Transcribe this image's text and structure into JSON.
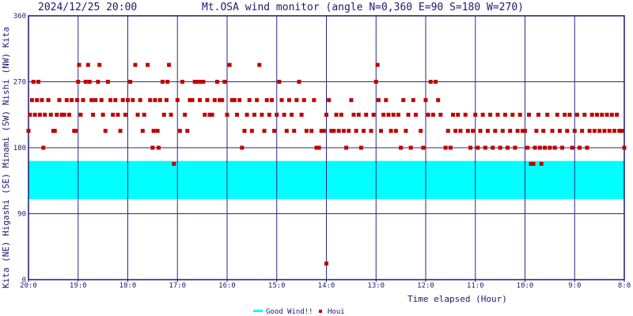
{
  "header": {
    "timestamp": "2024/12/25 20:00",
    "title": "Mt.OSA wind monitor (angle N=0,360 E=90 S=180 W=270)"
  },
  "left_labels": [
    "Kita (NE) Higashi (SE) Minami (SW) Nishi (NW) Kita"
  ],
  "colors": {
    "plot_border": "#1a1a6e",
    "grid": "#2a2a8a",
    "good_wind": "#00ffff",
    "houi": "#c00000",
    "text": "#1a1a6e"
  },
  "chart_data": {
    "type": "scatter",
    "title": "Mt.OSA wind monitor (angle N=0,360 E=90 S=180 W=270)",
    "xlabel": "Time elapsed (Hour)",
    "ylabel": "Kita (NE) Higashi (SE) Minami (SW) Nishi (NW) Kita",
    "xlim": [
      20,
      8
    ],
    "ylim": [
      0,
      360
    ],
    "x_ticks": [
      "20:0",
      "19:0",
      "18:0",
      "17:0",
      "16:0",
      "15:0",
      "14:0",
      "13:0",
      "12:0",
      "11:0",
      "10:0",
      "9:0",
      "8:0"
    ],
    "y_ticks": [
      "0",
      "90",
      "180",
      "270",
      "360"
    ],
    "grid": true,
    "legend": {
      "placement": "bottom-center",
      "entries": [
        "Good Wind!!",
        "Houi"
      ]
    },
    "good_wind_band": [
      110,
      162
    ],
    "houi_series_name": "Houi",
    "houi_points": [
      [
        20.0,
        203
      ],
      [
        19.97,
        225
      ],
      [
        19.93,
        245
      ],
      [
        19.9,
        270
      ],
      [
        19.87,
        225
      ],
      [
        19.83,
        245
      ],
      [
        19.8,
        270
      ],
      [
        19.77,
        225
      ],
      [
        19.73,
        245
      ],
      [
        19.7,
        180
      ],
      [
        19.67,
        225
      ],
      [
        19.6,
        245
      ],
      [
        19.55,
        225
      ],
      [
        19.5,
        203
      ],
      [
        19.47,
        203
      ],
      [
        19.43,
        225
      ],
      [
        19.38,
        245
      ],
      [
        19.33,
        225
      ],
      [
        19.28,
        225
      ],
      [
        19.23,
        245
      ],
      [
        19.18,
        225
      ],
      [
        19.13,
        245
      ],
      [
        19.08,
        203
      ],
      [
        19.05,
        203
      ],
      [
        19.02,
        245
      ],
      [
        19.0,
        270
      ],
      [
        18.98,
        293
      ],
      [
        18.95,
        225
      ],
      [
        18.9,
        245
      ],
      [
        18.85,
        270
      ],
      [
        18.8,
        293
      ],
      [
        18.77,
        270
      ],
      [
        18.73,
        245
      ],
      [
        18.7,
        225
      ],
      [
        18.65,
        245
      ],
      [
        18.6,
        270
      ],
      [
        18.57,
        293
      ],
      [
        18.53,
        245
      ],
      [
        18.5,
        225
      ],
      [
        18.45,
        203
      ],
      [
        18.4,
        270
      ],
      [
        18.35,
        245
      ],
      [
        18.3,
        225
      ],
      [
        18.25,
        245
      ],
      [
        18.2,
        225
      ],
      [
        18.15,
        203
      ],
      [
        18.1,
        245
      ],
      [
        18.05,
        225
      ],
      [
        18.0,
        245
      ],
      [
        17.95,
        270
      ],
      [
        17.9,
        245
      ],
      [
        17.85,
        293
      ],
      [
        17.8,
        225
      ],
      [
        17.75,
        245
      ],
      [
        17.7,
        203
      ],
      [
        17.67,
        225
      ],
      [
        17.6,
        293
      ],
      [
        17.55,
        245
      ],
      [
        17.5,
        180
      ],
      [
        17.48,
        203
      ],
      [
        17.45,
        245
      ],
      [
        17.4,
        203
      ],
      [
        17.38,
        180
      ],
      [
        17.35,
        245
      ],
      [
        17.3,
        270
      ],
      [
        17.27,
        225
      ],
      [
        17.22,
        245
      ],
      [
        17.2,
        270
      ],
      [
        17.17,
        293
      ],
      [
        17.13,
        225
      ],
      [
        17.07,
        158
      ],
      [
        17.0,
        245
      ],
      [
        16.95,
        203
      ],
      [
        16.9,
        270
      ],
      [
        16.85,
        225
      ],
      [
        16.8,
        203
      ],
      [
        16.75,
        245
      ],
      [
        16.7,
        245
      ],
      [
        16.65,
        270
      ],
      [
        16.6,
        270
      ],
      [
        16.55,
        245
      ],
      [
        16.52,
        270
      ],
      [
        16.48,
        270
      ],
      [
        16.45,
        225
      ],
      [
        16.4,
        245
      ],
      [
        16.35,
        225
      ],
      [
        16.3,
        225
      ],
      [
        16.25,
        245
      ],
      [
        16.2,
        270
      ],
      [
        16.15,
        245
      ],
      [
        16.1,
        245
      ],
      [
        16.05,
        270
      ],
      [
        16.0,
        225
      ],
      [
        15.95,
        293
      ],
      [
        15.9,
        245
      ],
      [
        15.85,
        245
      ],
      [
        15.8,
        225
      ],
      [
        15.75,
        245
      ],
      [
        15.7,
        180
      ],
      [
        15.65,
        203
      ],
      [
        15.6,
        225
      ],
      [
        15.55,
        245
      ],
      [
        15.5,
        203
      ],
      [
        15.45,
        225
      ],
      [
        15.4,
        245
      ],
      [
        15.35,
        293
      ],
      [
        15.3,
        225
      ],
      [
        15.25,
        203
      ],
      [
        15.2,
        245
      ],
      [
        15.15,
        225
      ],
      [
        15.1,
        245
      ],
      [
        15.05,
        203
      ],
      [
        15.0,
        225
      ],
      [
        14.95,
        270
      ],
      [
        14.9,
        245
      ],
      [
        14.85,
        225
      ],
      [
        14.8,
        203
      ],
      [
        14.75,
        245
      ],
      [
        14.7,
        225
      ],
      [
        14.65,
        203
      ],
      [
        14.6,
        245
      ],
      [
        14.55,
        270
      ],
      [
        14.5,
        225
      ],
      [
        14.45,
        245
      ],
      [
        14.4,
        203
      ],
      [
        14.3,
        203
      ],
      [
        14.25,
        245
      ],
      [
        14.2,
        180
      ],
      [
        14.15,
        180
      ],
      [
        14.1,
        203
      ],
      [
        14.05,
        203
      ],
      [
        14.0,
        225
      ],
      [
        13.95,
        245
      ],
      [
        13.9,
        203
      ],
      [
        13.85,
        203
      ],
      [
        13.8,
        225
      ],
      [
        13.75,
        203
      ],
      [
        13.7,
        225
      ],
      [
        13.65,
        203
      ],
      [
        13.6,
        180
      ],
      [
        13.55,
        203
      ],
      [
        13.5,
        245
      ],
      [
        13.45,
        225
      ],
      [
        13.4,
        203
      ],
      [
        13.35,
        225
      ],
      [
        13.3,
        180
      ],
      [
        13.25,
        203
      ],
      [
        13.2,
        225
      ],
      [
        13.1,
        203
      ],
      [
        13.05,
        225
      ],
      [
        13.0,
        270
      ],
      [
        12.97,
        293
      ],
      [
        12.95,
        245
      ],
      [
        12.9,
        203
      ],
      [
        12.85,
        225
      ],
      [
        12.8,
        245
      ],
      [
        12.75,
        225
      ],
      [
        12.7,
        203
      ],
      [
        12.65,
        225
      ],
      [
        12.6,
        203
      ],
      [
        12.55,
        225
      ],
      [
        12.5,
        180
      ],
      [
        12.45,
        245
      ],
      [
        12.4,
        203
      ],
      [
        12.35,
        225
      ],
      [
        12.3,
        180
      ],
      [
        12.25,
        245
      ],
      [
        12.2,
        225
      ],
      [
        12.1,
        203
      ],
      [
        12.05,
        180
      ],
      [
        12.0,
        245
      ],
      [
        11.95,
        225
      ],
      [
        11.9,
        270
      ],
      [
        11.85,
        225
      ],
      [
        11.8,
        270
      ],
      [
        11.75,
        245
      ],
      [
        11.7,
        225
      ],
      [
        11.6,
        180
      ],
      [
        11.55,
        203
      ],
      [
        11.5,
        180
      ],
      [
        11.45,
        225
      ],
      [
        11.4,
        203
      ],
      [
        11.35,
        225
      ],
      [
        11.3,
        203
      ],
      [
        11.2,
        225
      ],
      [
        11.15,
        203
      ],
      [
        11.1,
        180
      ],
      [
        11.05,
        203
      ],
      [
        11.0,
        225
      ],
      [
        10.95,
        180
      ],
      [
        10.9,
        203
      ],
      [
        10.85,
        225
      ],
      [
        10.8,
        180
      ],
      [
        10.75,
        203
      ],
      [
        10.7,
        225
      ],
      [
        10.65,
        180
      ],
      [
        10.6,
        203
      ],
      [
        10.55,
        225
      ],
      [
        10.5,
        180
      ],
      [
        10.45,
        203
      ],
      [
        10.4,
        225
      ],
      [
        10.35,
        180
      ],
      [
        10.3,
        203
      ],
      [
        10.25,
        225
      ],
      [
        10.2,
        180
      ],
      [
        10.15,
        203
      ],
      [
        10.1,
        225
      ],
      [
        10.05,
        203
      ],
      [
        10.0,
        203
      ],
      [
        9.95,
        180
      ],
      [
        9.92,
        225
      ],
      [
        9.88,
        158
      ],
      [
        9.83,
        158
      ],
      [
        9.8,
        180
      ],
      [
        9.77,
        203
      ],
      [
        9.73,
        225
      ],
      [
        9.7,
        180
      ],
      [
        9.67,
        158
      ],
      [
        9.63,
        203
      ],
      [
        9.6,
        180
      ],
      [
        9.55,
        225
      ],
      [
        9.5,
        180
      ],
      [
        9.45,
        203
      ],
      [
        9.4,
        180
      ],
      [
        9.35,
        225
      ],
      [
        9.3,
        203
      ],
      [
        9.25,
        180
      ],
      [
        9.2,
        225
      ],
      [
        9.15,
        203
      ],
      [
        9.1,
        225
      ],
      [
        9.05,
        180
      ],
      [
        9.0,
        203
      ],
      [
        8.95,
        225
      ],
      [
        8.9,
        180
      ],
      [
        8.85,
        203
      ],
      [
        8.8,
        225
      ],
      [
        8.75,
        180
      ],
      [
        8.7,
        203
      ],
      [
        8.65,
        225
      ],
      [
        8.6,
        203
      ],
      [
        8.55,
        225
      ],
      [
        8.5,
        203
      ],
      [
        8.45,
        225
      ],
      [
        8.4,
        203
      ],
      [
        8.35,
        225
      ],
      [
        8.3,
        203
      ],
      [
        8.25,
        225
      ],
      [
        8.2,
        203
      ],
      [
        8.15,
        225
      ],
      [
        8.1,
        203
      ],
      [
        8.05,
        203
      ],
      [
        8.0,
        180
      ],
      [
        14.0,
        22
      ]
    ]
  }
}
